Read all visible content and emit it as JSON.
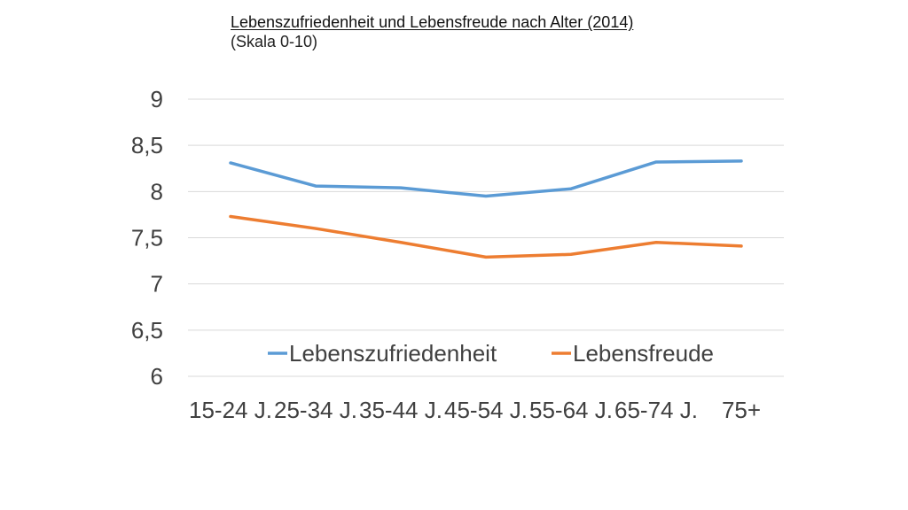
{
  "chart_data": {
    "type": "line",
    "title": "Lebenszufriedenheit und Lebensfreude nach Alter (2014)",
    "subtitle": "(Skala 0-10)",
    "categories": [
      "15-24 J.",
      "25-34 J.",
      "35-44 J.",
      "45-54 J.",
      "55-64 J.",
      "65-74 J.",
      "75+"
    ],
    "ylim": [
      6,
      9
    ],
    "yticks": [
      6,
      6.5,
      7,
      7.5,
      8,
      8.5,
      9
    ],
    "ytick_labels": [
      "6",
      "6,5",
      "7",
      "7,5",
      "8",
      "8,5",
      "9"
    ],
    "grid": true,
    "legend_position": "inside-bottom",
    "series": [
      {
        "name": "Lebenszufriedenheit",
        "color": "#5B9BD5",
        "values": [
          8.31,
          8.06,
          8.04,
          7.95,
          8.03,
          8.32,
          8.33
        ]
      },
      {
        "name": "Lebensfreude",
        "color": "#ED7D31",
        "values": [
          7.73,
          7.6,
          7.45,
          7.29,
          7.32,
          7.45,
          7.41
        ]
      }
    ]
  }
}
